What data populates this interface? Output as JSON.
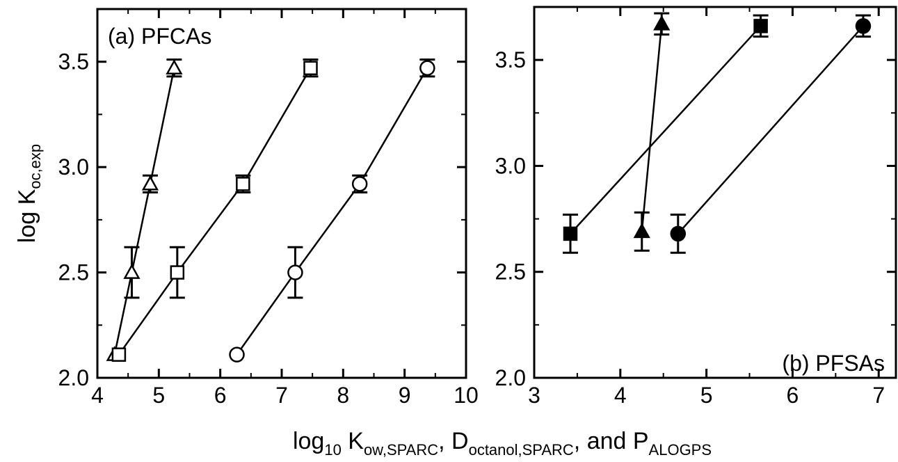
{
  "chart_data": [
    {
      "type": "scatter",
      "panel_label": "(a) PFCAs",
      "xlim": [
        4,
        10
      ],
      "ylim": [
        2.0,
        3.75
      ],
      "x_ticks": [
        "4",
        "5",
        "6",
        "7",
        "8",
        "9",
        "10"
      ],
      "y_ticks": [
        "2.0",
        "2.5",
        "3.0",
        "3.5"
      ],
      "series": [
        {
          "marker": "triangle-open",
          "x": [
            4.28,
            4.56,
            4.86,
            5.25
          ],
          "y": [
            2.11,
            2.5,
            2.92,
            3.47
          ],
          "err": [
            0,
            0.12,
            0.04,
            0.04
          ]
        },
        {
          "marker": "square-open",
          "x": [
            4.35,
            5.3,
            6.37,
            7.47
          ],
          "y": [
            2.11,
            2.5,
            2.92,
            3.47
          ],
          "err": [
            0,
            0.12,
            0.04,
            0.04
          ]
        },
        {
          "marker": "circle-open",
          "x": [
            6.27,
            7.22,
            8.27,
            9.37
          ],
          "y": [
            2.11,
            2.5,
            2.92,
            3.47
          ],
          "err": [
            0,
            0.12,
            0.04,
            0.04
          ]
        }
      ]
    },
    {
      "type": "scatter",
      "panel_label": "(b) PFSAs",
      "xlim": [
        3,
        7.2
      ],
      "ylim": [
        2.0,
        3.75
      ],
      "x_ticks": [
        "3",
        "4",
        "5",
        "6",
        "7"
      ],
      "y_ticks": [
        "2.0",
        "2.5",
        "3.0",
        "3.5"
      ],
      "series": [
        {
          "marker": "square-filled",
          "x": [
            3.42,
            5.63
          ],
          "y": [
            2.68,
            3.66
          ],
          "err": [
            0.09,
            0.05
          ]
        },
        {
          "marker": "triangle-filled",
          "x": [
            4.25,
            4.48
          ],
          "y": [
            2.69,
            3.67
          ],
          "err": [
            0.09,
            0.05
          ]
        },
        {
          "marker": "circle-filled",
          "x": [
            4.67,
            6.82
          ],
          "y": [
            2.68,
            3.66
          ],
          "err": [
            0.09,
            0.05
          ]
        }
      ]
    }
  ],
  "ylabel": {
    "main": "log K",
    "sub": "oc,exp"
  },
  "xlabel": {
    "p1": "log",
    "s1": "10",
    "p2": " K",
    "s2": "ow,SPARC",
    "p3": ", D",
    "s3": "octanol,SPARC",
    "p4": ", and P",
    "s4": "ALOGPS"
  }
}
